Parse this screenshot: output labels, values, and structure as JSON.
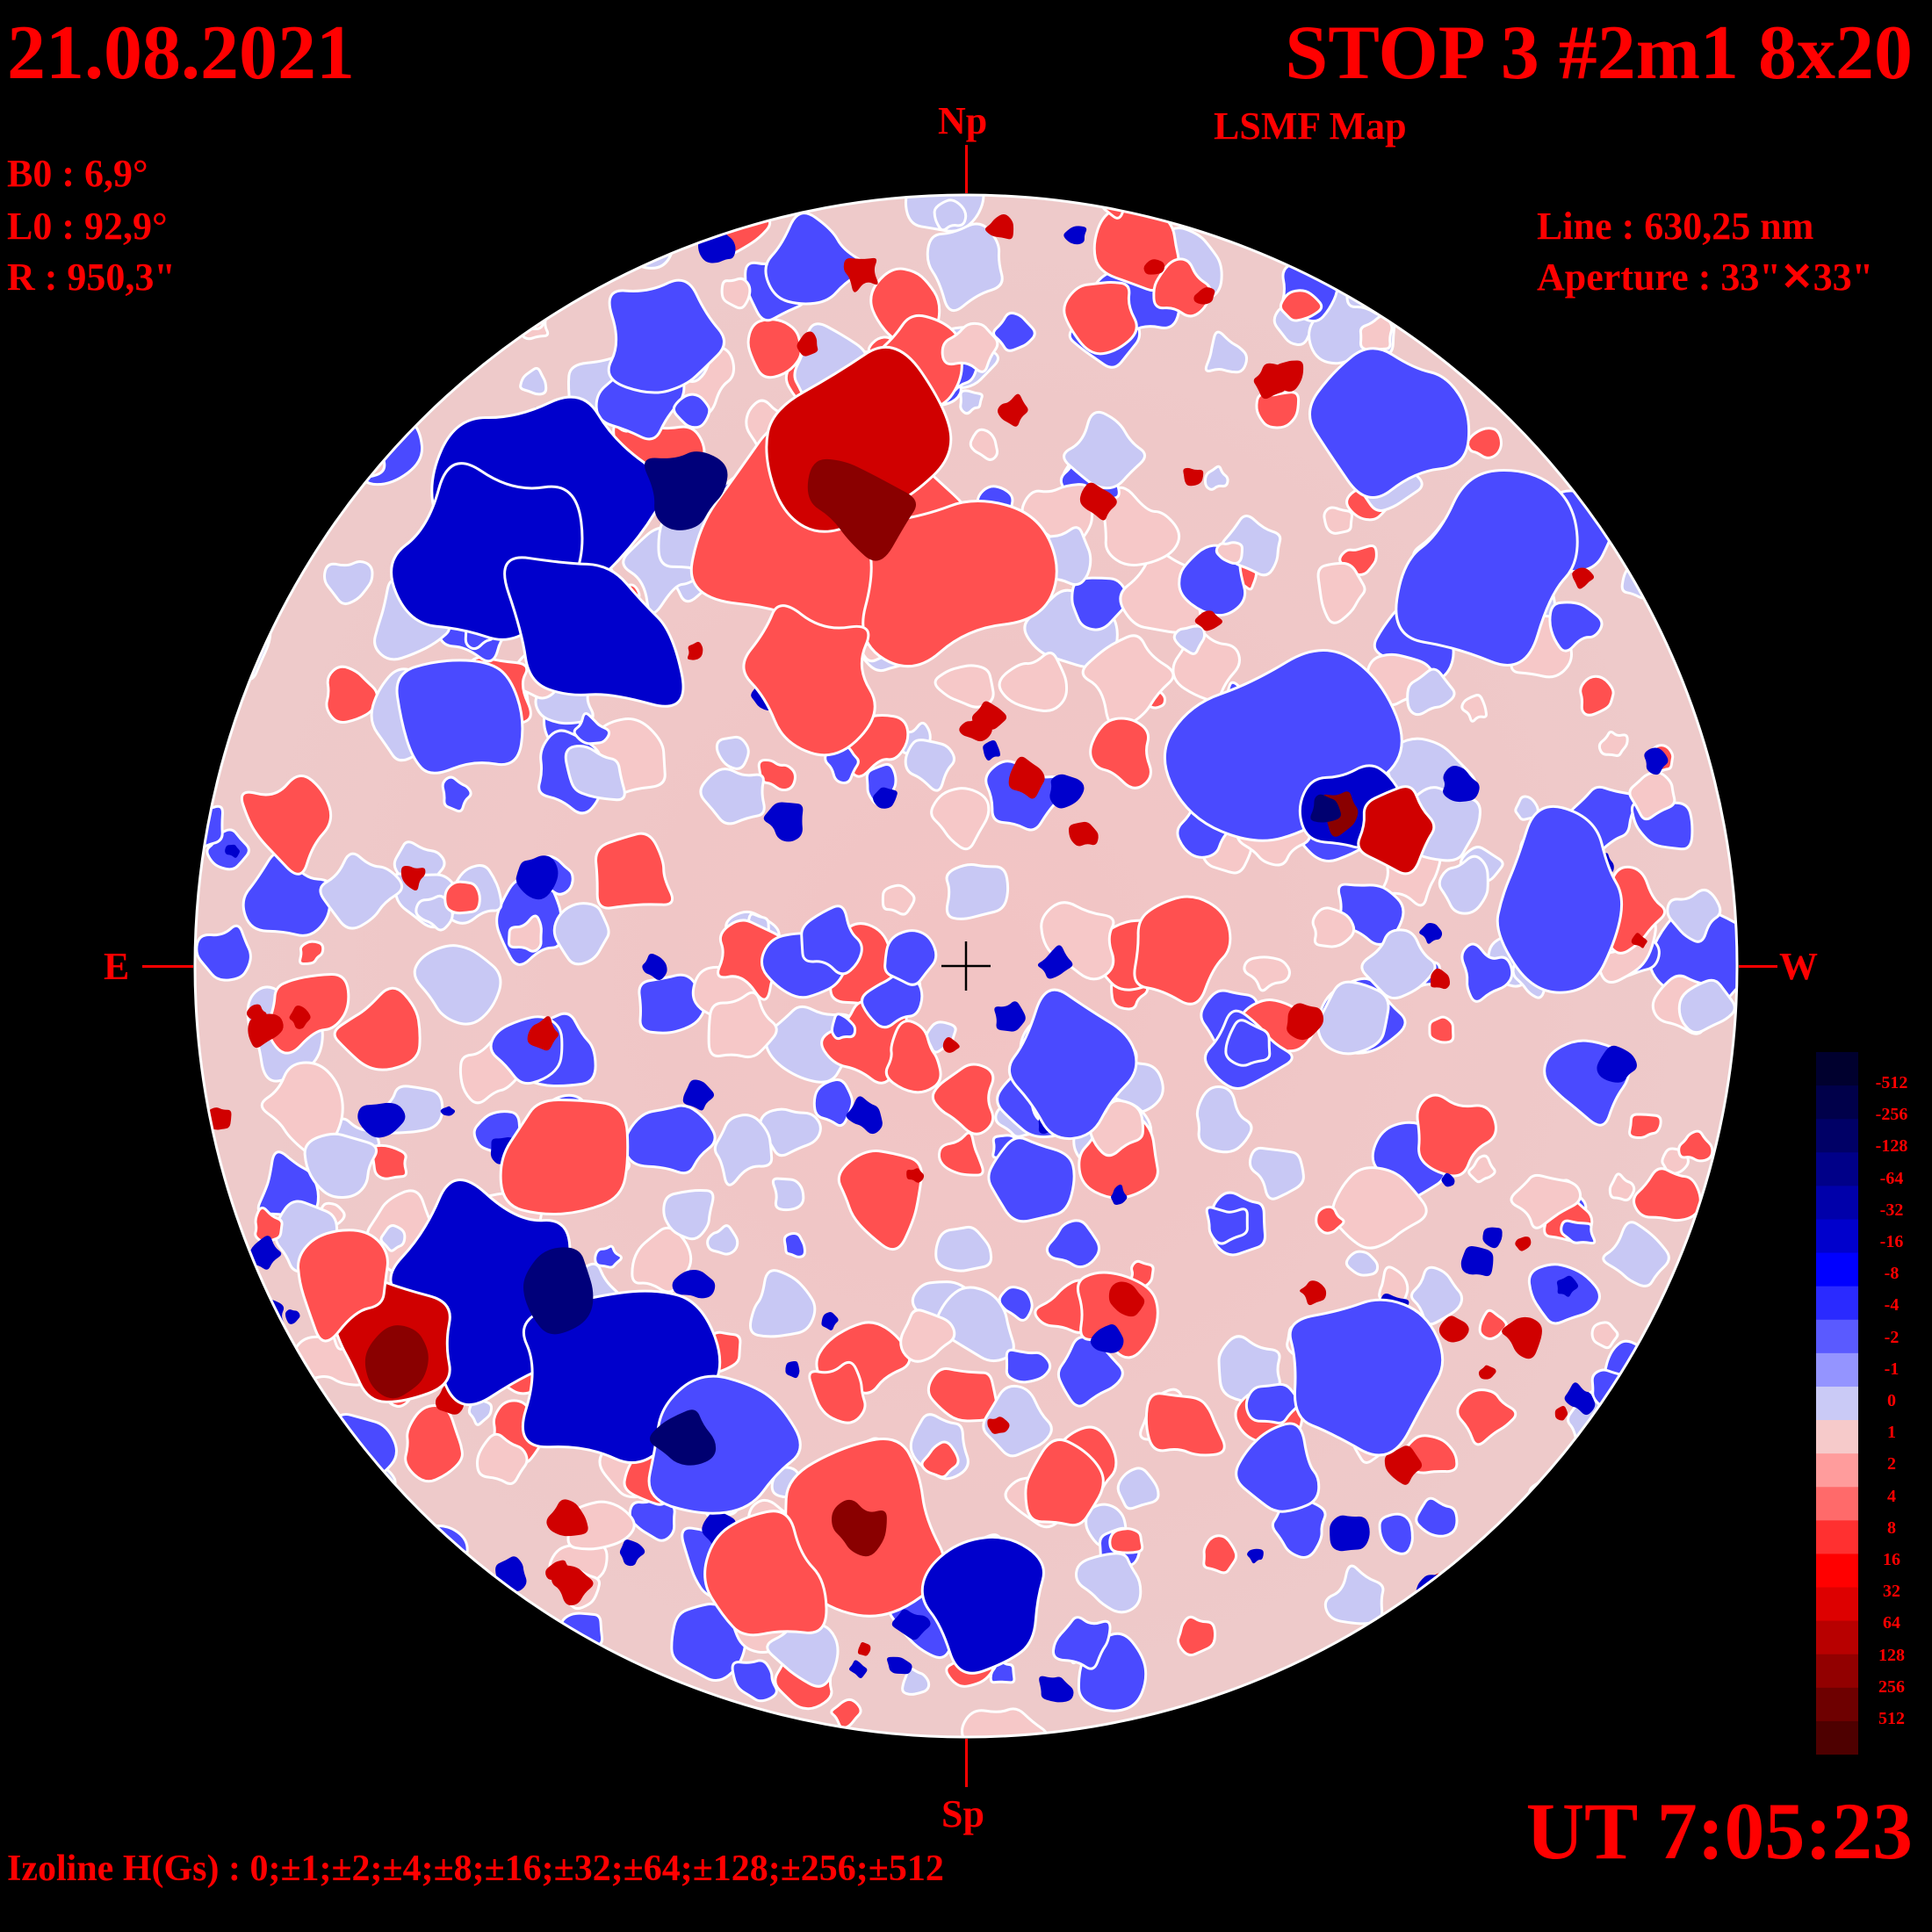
{
  "header": {
    "date": "21.08.2021",
    "title": "STOP 3 #2m1 8x20",
    "subtitle": "LSMF  Map"
  },
  "params": {
    "b0": "B0 : 6,9°",
    "l0": "L0 : 92,9°",
    "r": "R  : 950,3\""
  },
  "instrument": {
    "line": "Line :  630,25 nm",
    "aperture": "Aperture : 33\"✕33\""
  },
  "orientation": {
    "north": "Np",
    "south": "Sp",
    "east": "E",
    "west": "W"
  },
  "time": "UT 7:05:23",
  "izoline": "Izoline H(Gs) : 0;±1;±2;±4;±8;±16;±32;±64;±128;±256;±512",
  "colorscale": {
    "labels": [
      "-512",
      "-256",
      "-128",
      "-64",
      "-32",
      "-16",
      "-8",
      "-4",
      "-2",
      "-1",
      "0",
      "1",
      "2",
      "4",
      "8",
      "16",
      "32",
      "64",
      "128",
      "256",
      "512"
    ],
    "colors": [
      "#00002e",
      "#00004a",
      "#000066",
      "#000088",
      "#0000aa",
      "#0000cc",
      "#0000ff",
      "#2a2aff",
      "#5a5aff",
      "#9494ff",
      "#cacaf6",
      "#f6caca",
      "#ff9c9c",
      "#ff6a6a",
      "#ff3030",
      "#ff0000",
      "#dd0000",
      "#b80000",
      "#920000",
      "#6e0000",
      "#4e0000"
    ]
  },
  "map_colors": {
    "negative_strong": "#0000cc",
    "negative_mid": "#4a4aff",
    "negative_weak": "#c8c8f4",
    "positive_weak": "#f6c8c8",
    "positive_mid": "#ff5050",
    "positive_strong": "#d00000",
    "contour_zero": "#ffffff"
  }
}
